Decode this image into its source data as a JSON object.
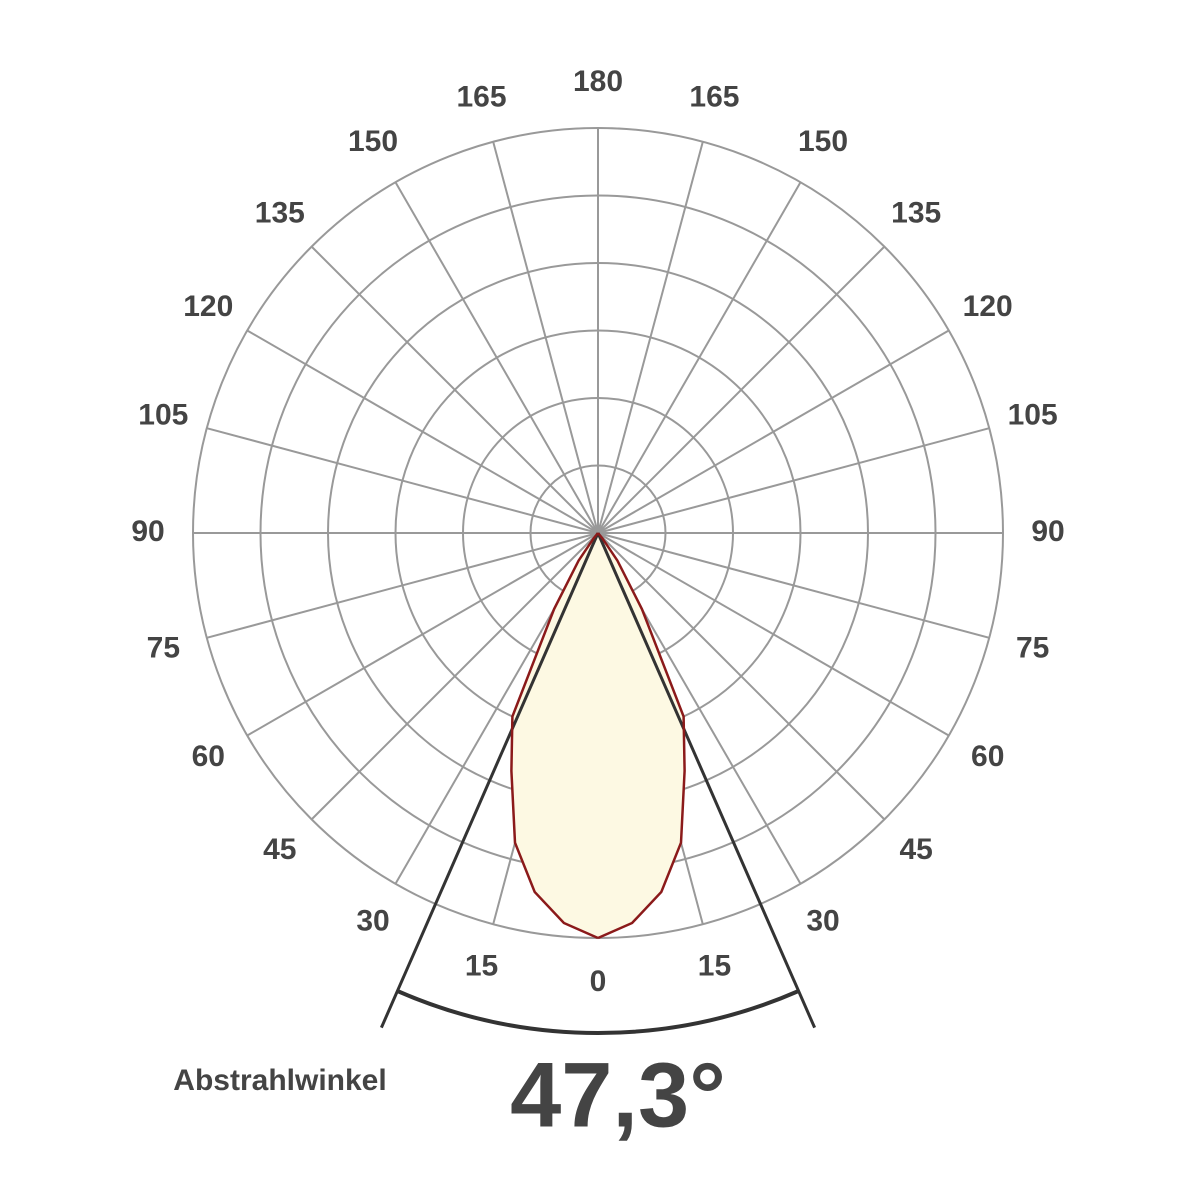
{
  "chart_data": {
    "type": "polar",
    "angle_ticks": [
      0,
      15,
      30,
      45,
      60,
      75,
      90,
      105,
      120,
      135,
      150,
      165,
      180
    ],
    "rlim": [
      0,
      6
    ],
    "rticks": [
      1,
      2,
      3,
      4,
      5,
      6
    ],
    "theta": [
      0,
      5,
      10,
      15,
      20,
      25,
      30,
      35,
      40,
      45
    ],
    "values": [
      6.0,
      5.8,
      5.4,
      4.75,
      3.75,
      3.0,
      1.3,
      0.5,
      0.1,
      0
    ],
    "color": "#8b1a1a",
    "fill": "#fdf9e3",
    "grid": true,
    "beam_label": "Abstrahlwinkel",
    "beam_angle": 47.3,
    "beam_angle_label": "47,3°"
  }
}
